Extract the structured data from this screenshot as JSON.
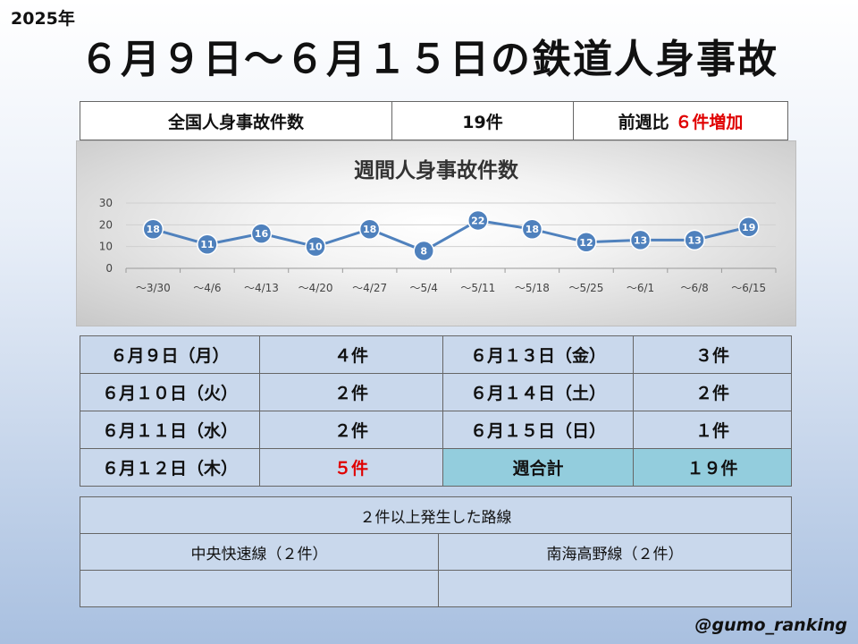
{
  "year": "2025年",
  "title": "６月９日～６月１５日の鉄道人身事故",
  "summary": {
    "label": "全国人身事故件数",
    "count": "19件",
    "compare_prefix": "前週比",
    "compare_value": "６件増加",
    "colors": {
      "highlight": "#e00000"
    }
  },
  "chart_data": {
    "type": "line",
    "title": "週間人身事故件数",
    "categories": [
      "～3/30",
      "～4/6",
      "～4/13",
      "～4/20",
      "～4/27",
      "～5/4",
      "～5/11",
      "～5/18",
      "～5/25",
      "～6/1",
      "～6/8",
      "～6/15"
    ],
    "series": [
      {
        "values": [
          18,
          11,
          16,
          10,
          18,
          8,
          22,
          18,
          12,
          13,
          13,
          19
        ]
      }
    ],
    "yticks": [
      "30",
      "20",
      "10",
      "0"
    ],
    "ylim": [
      0,
      30
    ],
    "grid": true,
    "colors": {
      "line": "#4f81bd",
      "marker": "#4f81bd",
      "label": "#ffffff"
    }
  },
  "days": {
    "rows": [
      {
        "d1": "６月９日（月）",
        "c1": "４件",
        "d2": "６月１３日（金）",
        "c2": "３件"
      },
      {
        "d1": "６月１０日（火）",
        "c1": "２件",
        "d2": "６月１４日（土）",
        "c2": "２件"
      },
      {
        "d1": "６月１１日（水）",
        "c1": "２件",
        "d2": "６月１５日（日）",
        "c2": "１件"
      },
      {
        "d1": "６月１２日（木）",
        "c1": "５件",
        "d2": "週合計",
        "c2": "１９件"
      }
    ]
  },
  "routes": {
    "header": "２件以上発生した路線",
    "items": [
      "中央快速線（２件）",
      "南海高野線（２件）"
    ]
  },
  "handle": "@gumo_ranking"
}
